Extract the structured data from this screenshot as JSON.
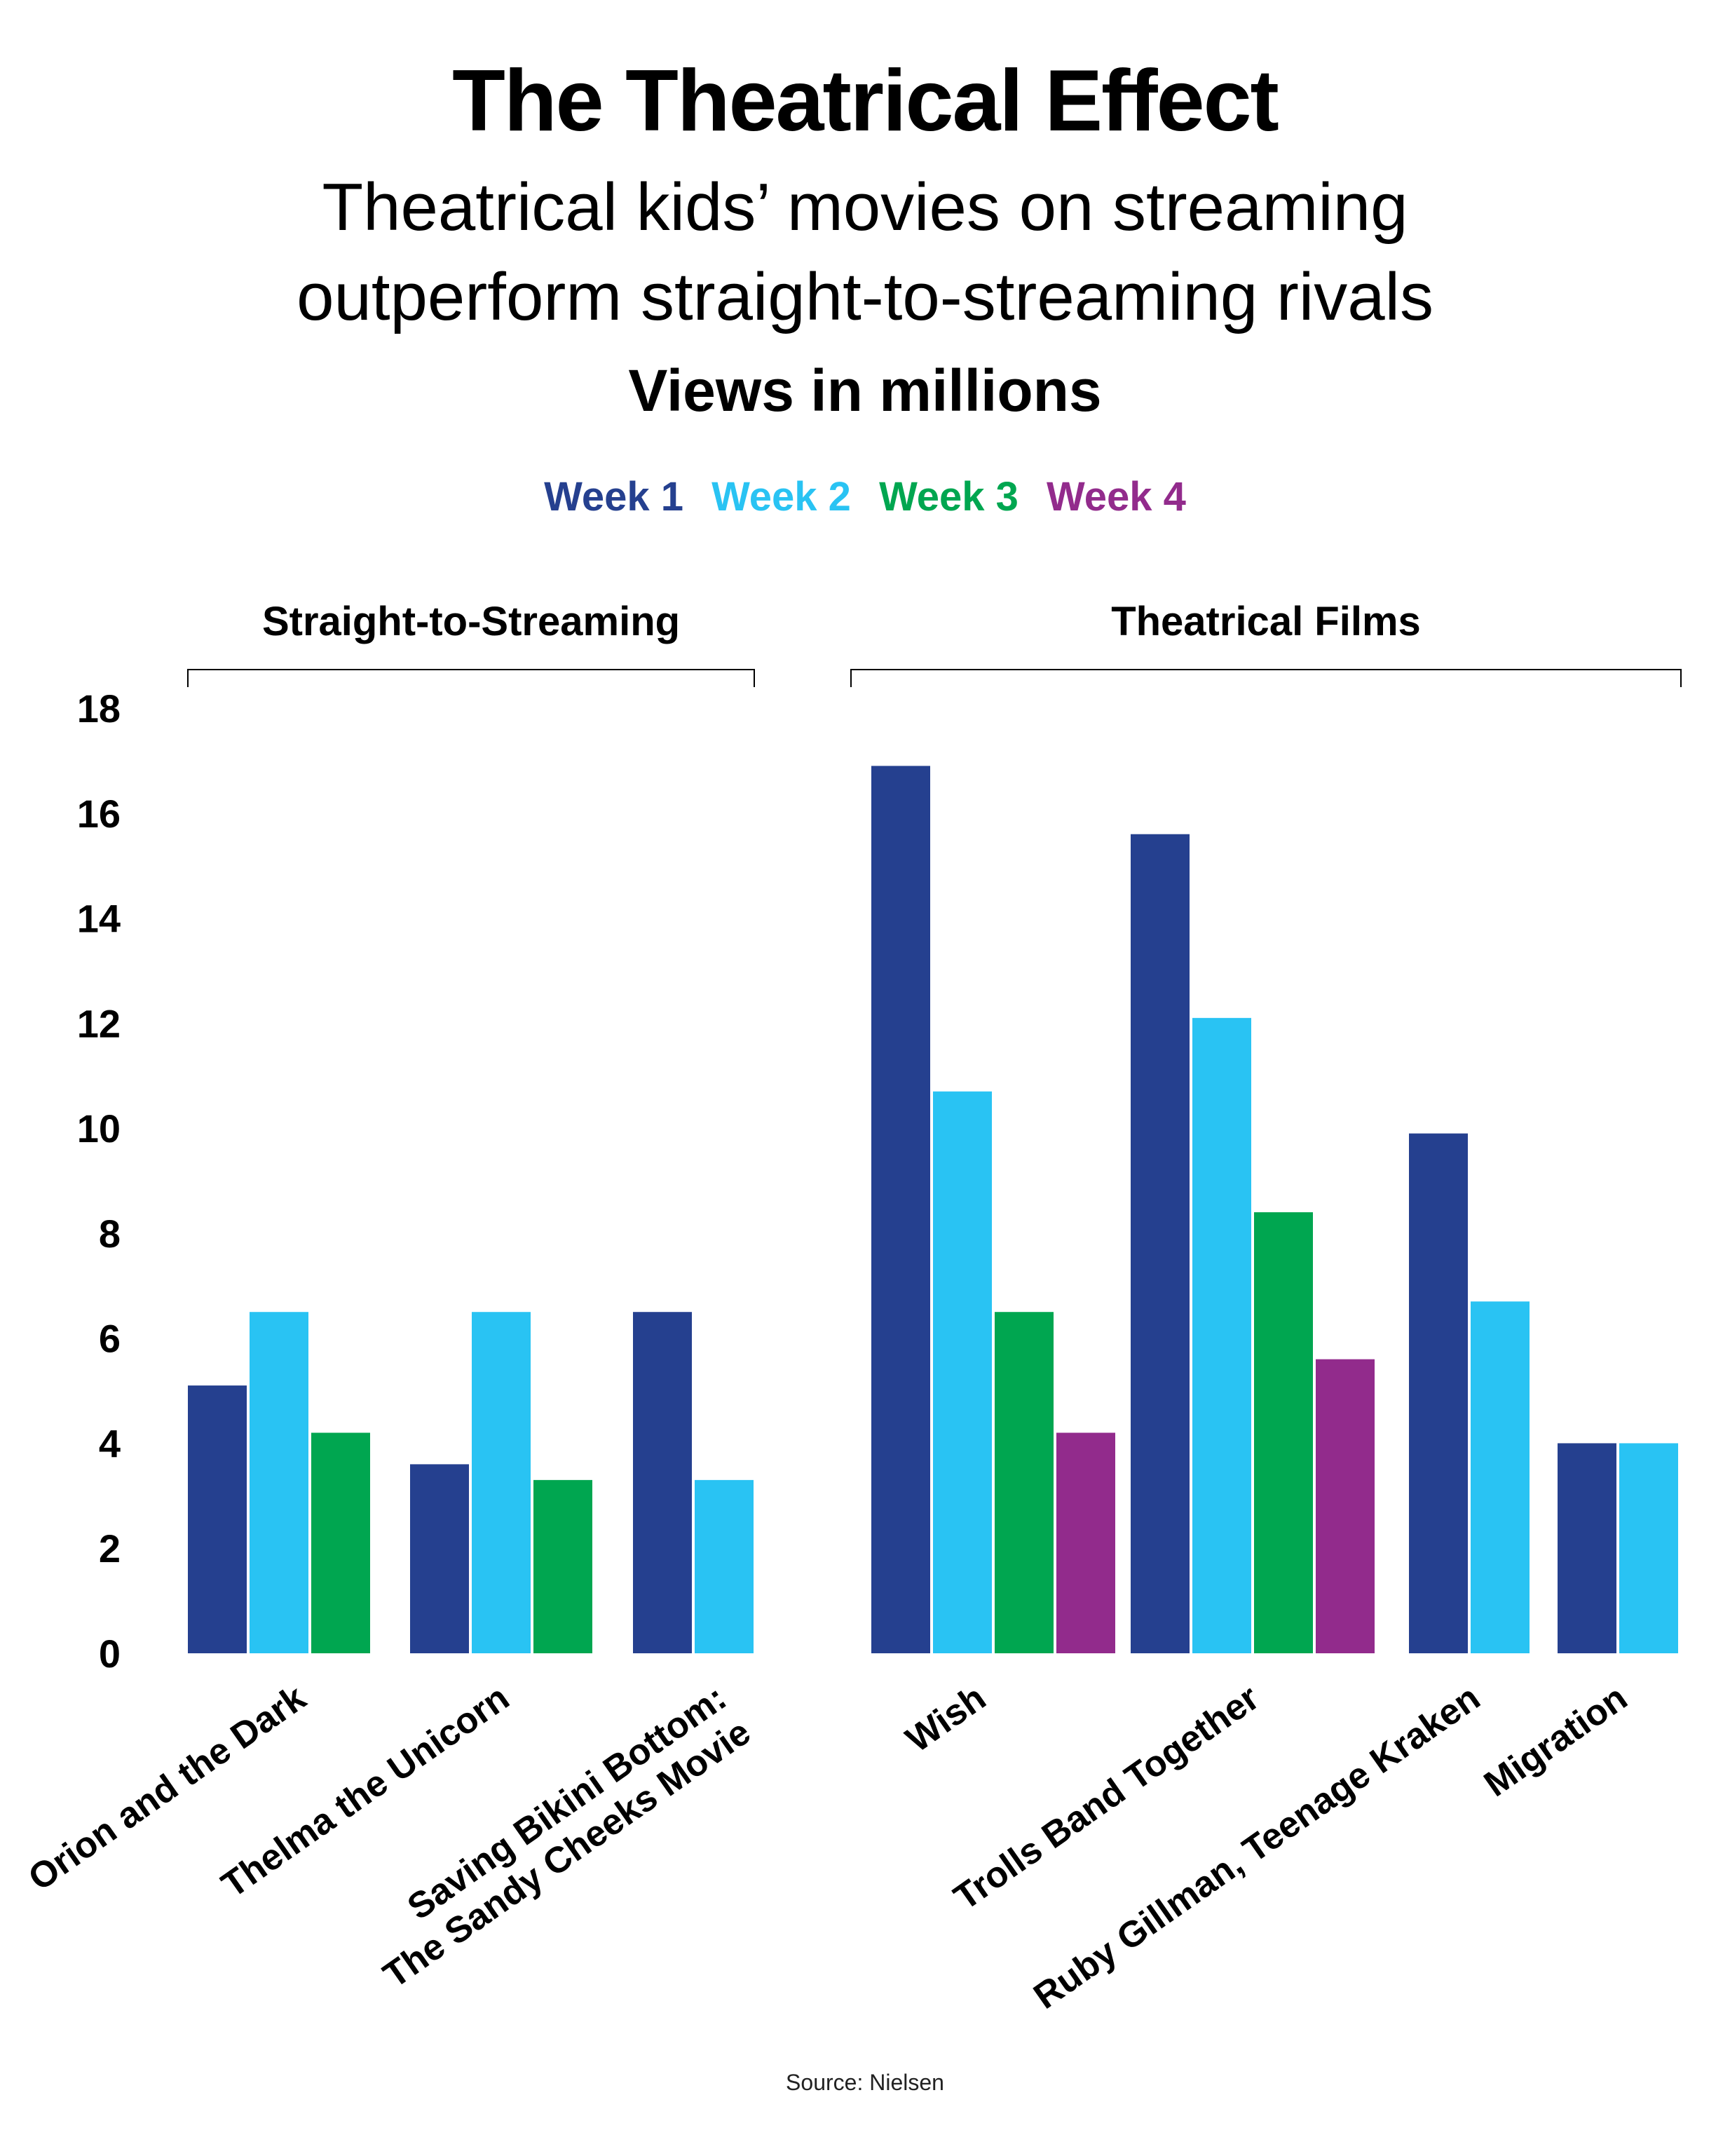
{
  "title": "The Theatrical Effect",
  "subtitle_lines": [
    "Theatrical kids’ movies on streaming",
    "outperform straight-to-streaming rivals"
  ],
  "unit_label": "Views in millions",
  "source": "Source: Nielsen",
  "colors": {
    "week1": "#25408f",
    "week2": "#29c3f3",
    "week3": "#00a650",
    "week4": "#922b8c"
  },
  "chart_data": {
    "type": "bar",
    "ylabel": "Views in millions",
    "ylim": [
      0,
      18
    ],
    "yticks": [
      0,
      2,
      4,
      6,
      8,
      10,
      12,
      14,
      16,
      18
    ],
    "legend": [
      "Week 1",
      "Week 2",
      "Week 3",
      "Week 4"
    ],
    "legend_position": "top-center",
    "groups": [
      {
        "name": "Straight-to-Streaming",
        "categories": [
          "Orion and the Dark",
          "Thelma the Unicorn",
          "Saving Bikini Bottom: The Sandy Cheeks Movie"
        ]
      },
      {
        "name": "Theatrical Films",
        "categories": [
          "Wish",
          "Trolls Band Together",
          "Ruby Gillman, Teenage Kraken",
          "Migration"
        ]
      }
    ],
    "categories": [
      "Orion and the Dark",
      "Thelma the Unicorn",
      "Saving Bikini Bottom: The Sandy Cheeks Movie",
      "Wish",
      "Trolls Band Together",
      "Ruby Gillman, Teenage Kraken",
      "Migration"
    ],
    "series": [
      {
        "name": "Week 1",
        "values": [
          5.1,
          3.6,
          6.5,
          16.9,
          15.6,
          9.9,
          4.0
        ]
      },
      {
        "name": "Week 2",
        "values": [
          6.5,
          6.5,
          3.3,
          10.7,
          12.1,
          6.7,
          4.0
        ]
      },
      {
        "name": "Week 3",
        "values": [
          4.2,
          3.3,
          null,
          6.5,
          8.4,
          null,
          null
        ]
      },
      {
        "name": "Week 4",
        "values": [
          null,
          null,
          null,
          4.2,
          5.6,
          null,
          null
        ]
      }
    ],
    "grid": false
  }
}
